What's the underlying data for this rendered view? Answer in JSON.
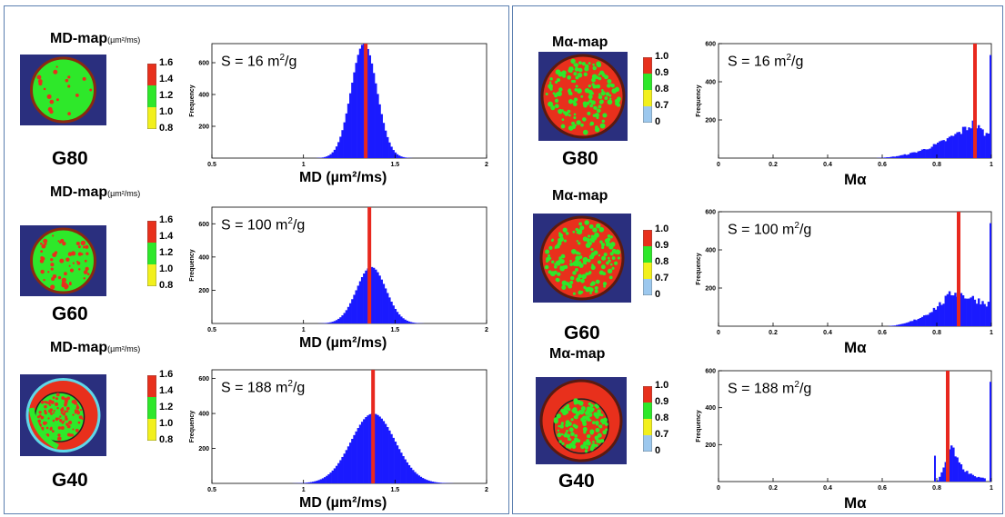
{
  "colors": {
    "bars": "#1a1aff",
    "marker": "#e8281e",
    "panel_border": "#5b7fb0",
    "map_bg": "#2a2f7e",
    "green": "#2ee82a",
    "red": "#e8301c",
    "yellow": "#f2f01c",
    "lightblue": "#9cc8ee"
  },
  "md_section": {
    "map_title": "MD-map",
    "map_unit": "(µm²/ms)",
    "colorbar_ticks": [
      "1.6",
      "1.4",
      "1.2",
      "1.0",
      "0.8"
    ],
    "xlabel": "MD (µm²/ms)",
    "ylabel": "Frequency"
  },
  "ma_section": {
    "map_title": "Mα-map",
    "colorbar_ticks": [
      "1.0",
      "0.9",
      "0.8",
      "0.7",
      "0"
    ],
    "xlabel": "Mα",
    "ylabel": "Frequency"
  },
  "chart_data": [
    {
      "type": "bar",
      "panel": "MD",
      "sample": "G80",
      "annotation": "S = 16 m²/g",
      "xlabel": "MD (µm²/ms)",
      "ylabel": "Frequency",
      "xlim": [
        0.5,
        2
      ],
      "ylim": [
        0,
        720
      ],
      "x_ticks": [
        "0.5",
        "1",
        "1.5",
        "2"
      ],
      "y_ticks": [
        "200",
        "400",
        "600"
      ],
      "distribution": {
        "shape": "gaussian",
        "mean": 1.33,
        "sd": 0.07,
        "peak": 720
      },
      "marker_x": 1.34
    },
    {
      "type": "bar",
      "panel": "MD",
      "sample": "G60",
      "annotation": "S = 100 m²/g",
      "xlabel": "MD (µm²/ms)",
      "ylabel": "Frequency",
      "xlim": [
        0.5,
        2
      ],
      "ylim": [
        0,
        700
      ],
      "x_ticks": [
        "0.5",
        "1",
        "1.5",
        "2"
      ],
      "y_ticks": [
        "200",
        "400",
        "600"
      ],
      "distribution": {
        "shape": "gaussian",
        "mean": 1.37,
        "sd": 0.08,
        "peak": 340
      },
      "marker_x": 1.36
    },
    {
      "type": "bar",
      "panel": "MD",
      "sample": "G40",
      "annotation": "S = 188 m²/g",
      "xlabel": "MD (µm²/ms)",
      "ylabel": "Frequency",
      "xlim": [
        0.5,
        2
      ],
      "ylim": [
        0,
        650
      ],
      "x_ticks": [
        "0.5",
        "1",
        "1.5",
        "2"
      ],
      "y_ticks": [
        "200",
        "400",
        "600"
      ],
      "distribution": {
        "shape": "gaussian",
        "mean": 1.38,
        "sd": 0.12,
        "peak": 400
      },
      "marker_x": 1.38
    },
    {
      "type": "bar",
      "panel": "Malpha",
      "sample": "G80",
      "annotation": "S = 16 m²/g",
      "xlabel": "Mα",
      "ylabel": "Frequency",
      "xlim": [
        0,
        1
      ],
      "ylim": [
        0,
        600
      ],
      "x_ticks": [
        "0",
        "0.2",
        "0.4",
        "0.6",
        "0.8",
        "1"
      ],
      "y_ticks": [
        "200",
        "400",
        "600"
      ],
      "distribution": {
        "shape": "rising",
        "start": 0.55,
        "peak_x": 0.93,
        "peak": 180,
        "end": 0.99,
        "spike_x": 1.0,
        "spike": 540
      },
      "marker_x": 0.94
    },
    {
      "type": "bar",
      "panel": "Malpha",
      "sample": "G60",
      "annotation": "S = 100 m²/g",
      "xlabel": "Mα",
      "ylabel": "Frequency",
      "xlim": [
        0,
        1
      ],
      "ylim": [
        0,
        600
      ],
      "x_ticks": [
        "0",
        "0.2",
        "0.4",
        "0.6",
        "0.8",
        "1"
      ],
      "y_ticks": [
        "200",
        "400",
        "600"
      ],
      "distribution": {
        "shape": "rising",
        "start": 0.6,
        "peak_x": 0.86,
        "peak": 180,
        "end": 0.99,
        "spike_x": 1.0,
        "spike": 540
      },
      "marker_x": 0.88
    },
    {
      "type": "bar",
      "panel": "Malpha",
      "sample": "G40",
      "annotation": "S = 188 m²/g",
      "xlabel": "Mα",
      "ylabel": "Frequency",
      "xlim": [
        0,
        1
      ],
      "ylim": [
        0,
        600
      ],
      "x_ticks": [
        "0",
        "0.2",
        "0.4",
        "0.6",
        "0.8",
        "1"
      ],
      "y_ticks": [
        "200",
        "400",
        "600"
      ],
      "distribution": {
        "shape": "narrow",
        "start": 0.8,
        "peak_x": 0.85,
        "peak": 200,
        "end": 0.98,
        "pre_spike_x": 0.79,
        "pre_spike": 140,
        "spike_x": 1.0,
        "spike": 540
      },
      "marker_x": 0.84
    }
  ]
}
